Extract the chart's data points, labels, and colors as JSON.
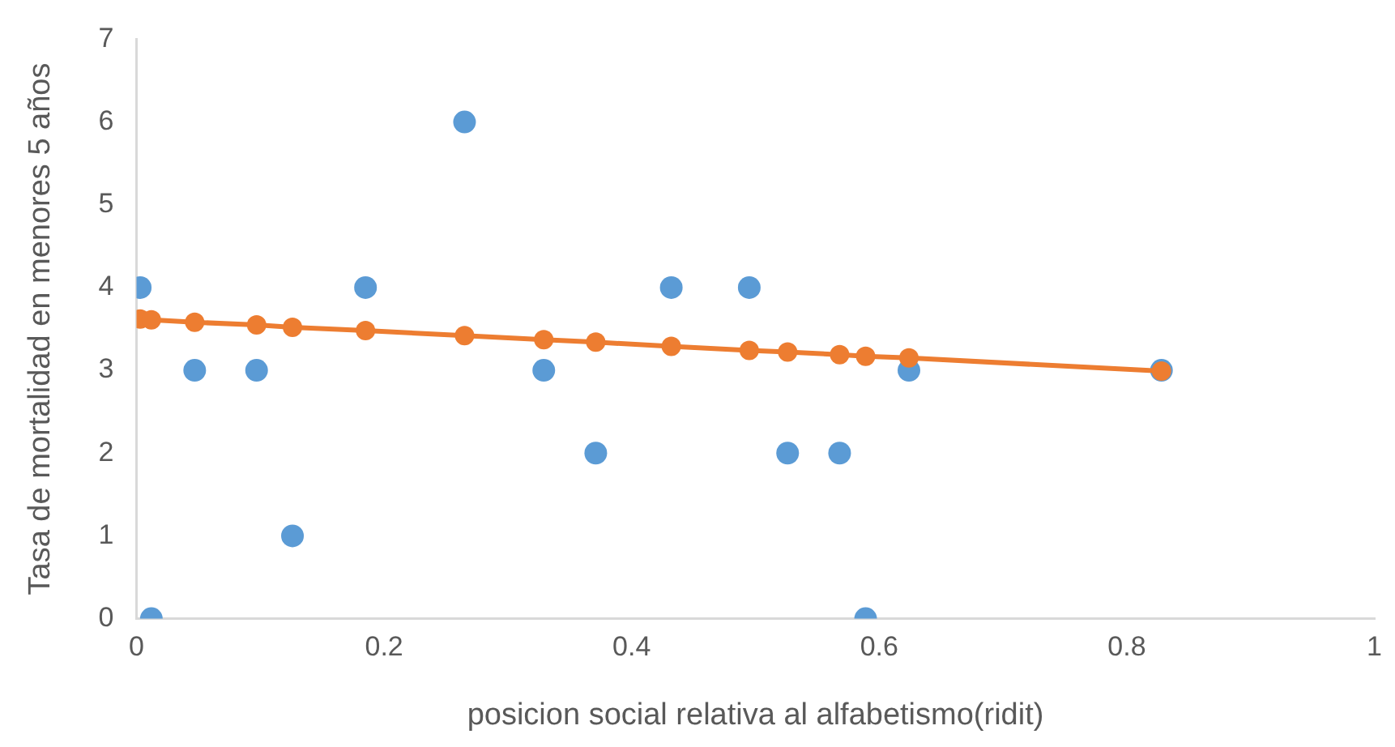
{
  "chart_data": {
    "type": "scatter",
    "xlabel": "posicion social relativa al alfabetismo(ridit)",
    "ylabel": "Tasa de mortalidad en menores 5 años",
    "x": [
      0.003,
      0.012,
      0.047,
      0.097,
      0.126,
      0.185,
      0.265,
      0.329,
      0.371,
      0.432,
      0.495,
      0.526,
      0.568,
      0.589,
      0.624,
      0.828
    ],
    "series": [
      {
        "color": "#5b9bd5",
        "values": [
          4,
          0,
          3,
          3,
          1,
          4,
          6,
          3,
          2,
          4,
          4,
          2,
          2,
          0,
          3,
          3
        ]
      },
      {
        "type": "line",
        "color": "#ed7d31",
        "marker": "circle",
        "values": [
          3.62,
          3.61,
          3.58,
          3.55,
          3.52,
          3.48,
          3.42,
          3.37,
          3.34,
          3.29,
          3.24,
          3.22,
          3.19,
          3.17,
          3.15,
          2.99
        ]
      }
    ],
    "xlim": [
      0,
      1
    ],
    "xticks": [
      0,
      0.2,
      0.4,
      0.6,
      0.8,
      1
    ],
    "ylim": [
      0,
      7
    ],
    "yticks": [
      0,
      1,
      2,
      3,
      4,
      5,
      6,
      7
    ],
    "grid": false,
    "legend": false,
    "marker": "circle"
  }
}
